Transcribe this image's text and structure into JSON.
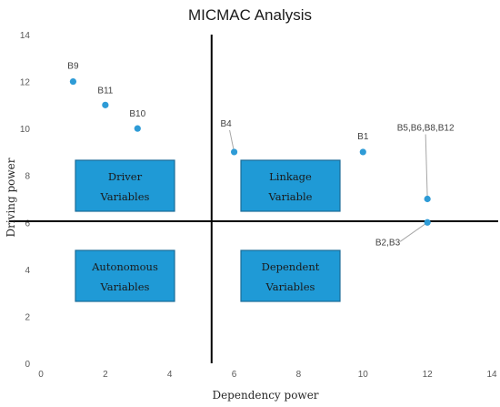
{
  "chart_data": {
    "type": "scatter",
    "title": "MICMAC Analysis",
    "xlabel": "Dependency power",
    "ylabel": "Driving power",
    "xlim": [
      0,
      14
    ],
    "ylim": [
      0,
      14
    ],
    "xticks": [
      0,
      2,
      4,
      6,
      8,
      10,
      12,
      14
    ],
    "yticks": [
      0,
      2,
      4,
      6,
      8,
      10,
      12,
      14
    ],
    "grid": false,
    "point_color": "#2e9bd6",
    "box_color": "#1f9ad6",
    "box_border_color": "#1b6b98",
    "divider_lines": {
      "x": 5.3,
      "y": 6.05
    },
    "points": [
      {
        "label": "B9",
        "x": 1,
        "y": 12
      },
      {
        "label": "B11",
        "x": 2,
        "y": 11
      },
      {
        "label": "B10",
        "x": 3,
        "y": 10
      },
      {
        "label": "B4",
        "x": 6,
        "y": 9
      },
      {
        "label": "B1",
        "x": 10,
        "y": 9
      },
      {
        "label": "B5,B6,B8,B12",
        "x": 12,
        "y": 7
      },
      {
        "label": "B2,B3",
        "x": 12,
        "y": 6
      }
    ],
    "quadrant_labels": [
      {
        "line1": "Driver",
        "line2": "Variables",
        "quadrant": "top-left"
      },
      {
        "line1": "Linkage",
        "line2": "Variable",
        "quadrant": "top-right"
      },
      {
        "line1": "Autonomous",
        "line2": "Variables",
        "quadrant": "bottom-left"
      },
      {
        "line1": "Dependent",
        "line2": "Variables",
        "quadrant": "bottom-right"
      }
    ]
  }
}
